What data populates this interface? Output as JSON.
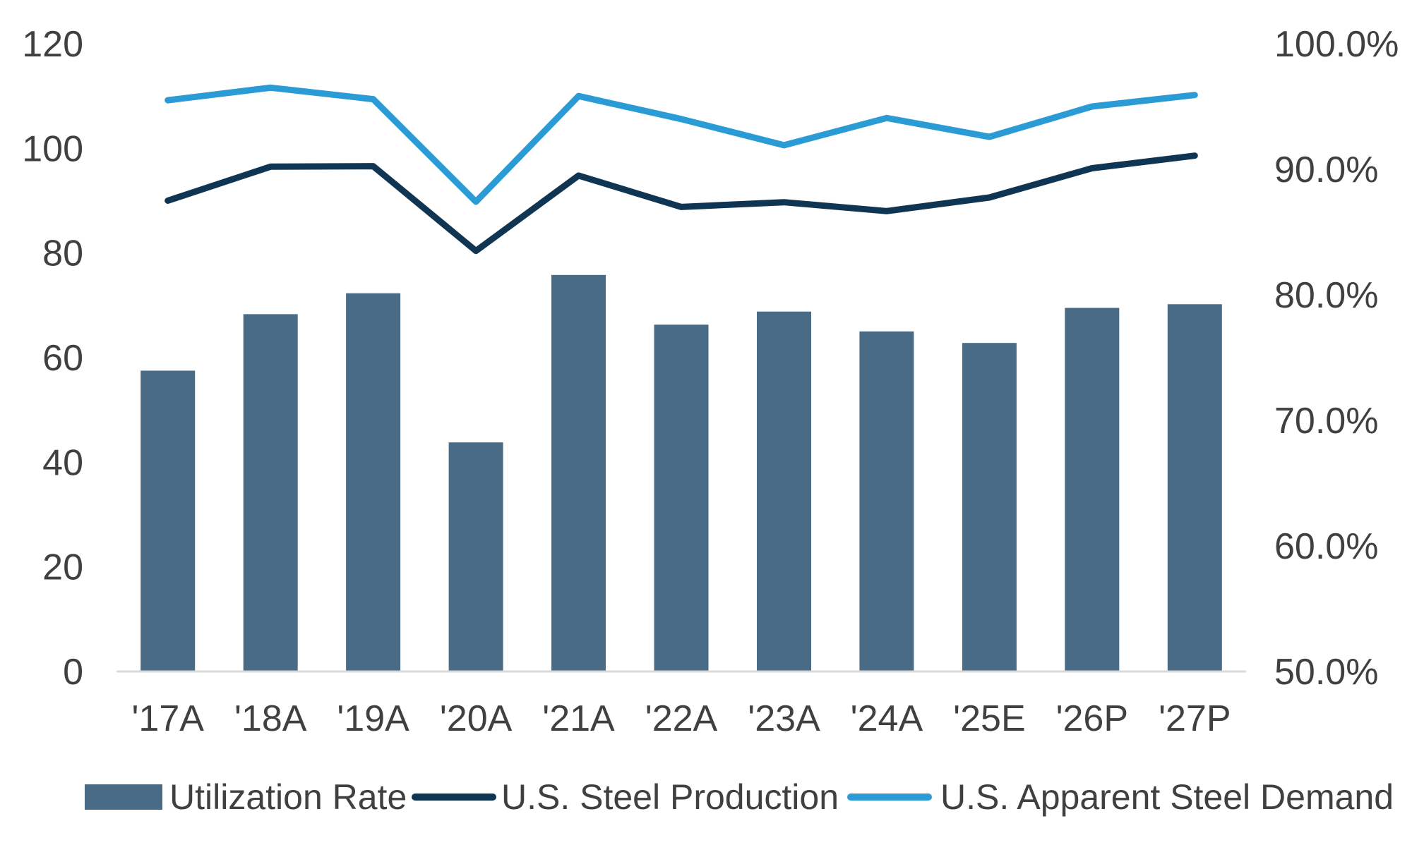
{
  "chart_data": {
    "type": "bar",
    "categories": [
      "'17A",
      "'18A",
      "'19A",
      "'20A",
      "'21A",
      "'22A",
      "'23A",
      "'24A",
      "'25E",
      "'26P",
      "'27P"
    ],
    "left_axis": {
      "ylim": [
        0,
        120
      ],
      "ticks": [
        0,
        20,
        40,
        60,
        80,
        100,
        120
      ],
      "tick_labels": [
        "0",
        "20",
        "40",
        "60",
        "80",
        "100",
        "120"
      ]
    },
    "right_axis": {
      "ylim": [
        50,
        100
      ],
      "ticks": [
        50,
        60,
        70,
        80,
        90,
        100
      ],
      "tick_labels": [
        "50.0%",
        "60.0%",
        "70.0%",
        "80.0%",
        "90.0%",
        "100.0%"
      ]
    },
    "series": [
      {
        "name": "Utilization Rate",
        "kind": "bar",
        "axis": "left",
        "color": "#4a6b85",
        "values": [
          57.5,
          68.3,
          72.3,
          43.8,
          75.8,
          66.3,
          68.8,
          65.0,
          62.8,
          69.5,
          70.2
        ]
      },
      {
        "name": "U.S. Steel Production",
        "kind": "line",
        "axis": "left",
        "color": "#0f3552",
        "values": [
          90.0,
          96.5,
          96.6,
          80.4,
          94.8,
          88.8,
          89.7,
          88.0,
          90.6,
          96.2,
          98.6
        ]
      },
      {
        "name": "U.S. Apparent Steel Demand",
        "kind": "line",
        "axis": "left",
        "color": "#2b9bd6",
        "values": [
          109.2,
          111.6,
          109.4,
          89.8,
          110.0,
          105.6,
          100.6,
          105.8,
          102.2,
          108.0,
          110.2
        ]
      }
    ],
    "legend_position": "bottom",
    "grid": false
  }
}
